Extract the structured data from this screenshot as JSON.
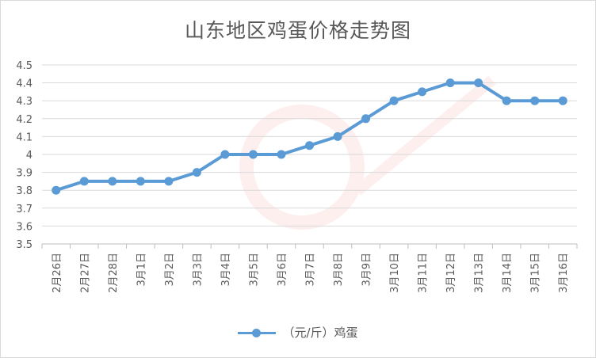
{
  "chart_data": {
    "type": "line",
    "title": "山东地区鸡蛋价格走势图",
    "categories": [
      "2月26日",
      "2月27日",
      "2月28日",
      "3月1日",
      "3月2日",
      "3月3日",
      "3月4日",
      "3月5日",
      "3月6日",
      "3月7日",
      "3月8日",
      "3月9日",
      "3月10日",
      "3月11日",
      "3月12日",
      "3月13日",
      "3月14日",
      "3月15日",
      "3月16日"
    ],
    "series": [
      {
        "name": "（元/斤）鸡蛋",
        "color": "#5b9bd5",
        "values": [
          3.8,
          3.85,
          3.85,
          3.85,
          3.85,
          3.9,
          4.0,
          4.0,
          4.0,
          4.05,
          4.1,
          4.2,
          4.3,
          4.35,
          4.4,
          4.4,
          4.3,
          4.3,
          4.3
        ]
      }
    ],
    "yticks": [
      "3.5",
      "3.6",
      "3.7",
      "3.8",
      "3.9",
      "4",
      "4.1",
      "4.2",
      "4.3",
      "4.4",
      "4.5"
    ],
    "ylim": [
      3.5,
      4.5
    ],
    "xlabel": "",
    "ylabel": "",
    "grid": true,
    "legend": "bottom"
  },
  "colors": {
    "grid": "#d9d9d9",
    "axis": "#bfbfbf",
    "text": "#595959",
    "series": "#5b9bd5",
    "watermark": "#e8433a"
  }
}
